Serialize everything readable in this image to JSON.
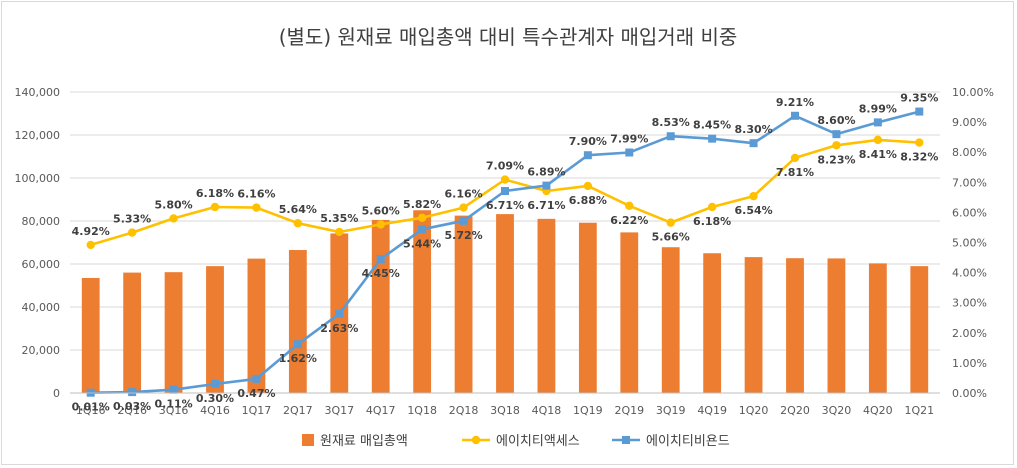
{
  "chart_data": {
    "type": "bar+line",
    "title": "(별도) 원재료 매입총액 대비 특수관계자 매입거래 비중",
    "categories": [
      "1Q16",
      "2Q16",
      "3Q16",
      "4Q16",
      "1Q17",
      "2Q17",
      "3Q17",
      "4Q17",
      "1Q18",
      "2Q18",
      "3Q18",
      "4Q18",
      "1Q19",
      "2Q19",
      "3Q19",
      "4Q19",
      "1Q20",
      "2Q20",
      "3Q20",
      "4Q20",
      "1Q21"
    ],
    "category_labels": [
      "1Q16",
      "2Q16",
      "3Q16",
      "4Q16",
      "1Q17",
      "2Q17",
      "3Q17",
      "4Q17",
      "1Q18",
      "2Q18",
      "3Q18",
      "4Q18",
      "1Q19",
      "2Q19",
      "3Q19",
      "4Q19",
      "1Q20",
      "2Q20",
      "3Q20",
      "4Q20",
      "1Q21"
    ],
    "y_left": {
      "min": 0,
      "max": 140000,
      "step": 20000,
      "ticks": [
        "0",
        "20,000",
        "40,000",
        "60,000",
        "80,000",
        "100,000",
        "120,000",
        "140,000"
      ]
    },
    "y_right": {
      "min": 0,
      "max": 10,
      "step": 1,
      "ticks": [
        "0.00%",
        "1.00%",
        "2.00%",
        "3.00%",
        "4.00%",
        "5.00%",
        "6.00%",
        "7.00%",
        "8.00%",
        "9.00%",
        "10.00%"
      ]
    },
    "series": [
      {
        "name": "원재료 매입총액",
        "type": "bar",
        "axis": "left",
        "color": "#ED7D31",
        "values": [
          53500,
          56000,
          56200,
          59000,
          62500,
          66500,
          74200,
          80500,
          85000,
          82500,
          83200,
          81000,
          79200,
          74700,
          67800,
          65000,
          63200,
          62700,
          62600,
          60300,
          59000
        ]
      },
      {
        "name": "에이치티액세스",
        "type": "line",
        "axis": "right",
        "color": "#FFC000",
        "values": [
          4.92,
          5.33,
          5.8,
          6.18,
          6.16,
          5.64,
          5.35,
          5.6,
          5.82,
          6.16,
          7.09,
          6.71,
          6.88,
          6.22,
          5.66,
          6.18,
          6.54,
          7.81,
          8.23,
          8.41,
          8.32
        ],
        "labels": [
          "4.92%",
          "5.33%",
          "5.80%",
          "6.18%",
          "6.16%",
          "5.64%",
          "5.35%",
          "5.60%",
          "5.82%",
          "6.16%",
          "7.09%",
          "6.71%",
          "6.88%",
          "6.22%",
          "5.66%",
          "6.18%",
          "6.54%",
          "7.81%",
          "8.23%",
          "8.41%",
          "8.32%"
        ]
      },
      {
        "name": "에이치티비욘드",
        "type": "line",
        "axis": "right",
        "color": "#5B9BD5",
        "values": [
          0.01,
          0.03,
          0.11,
          0.3,
          0.47,
          1.62,
          2.63,
          4.45,
          5.44,
          5.72,
          6.71,
          6.89,
          7.9,
          7.99,
          8.53,
          8.45,
          8.3,
          9.21,
          8.6,
          8.99,
          9.35
        ],
        "labels": [
          "0.01%",
          "0.03%",
          "0.11%",
          "0.30%",
          "0.47%",
          "1.62%",
          "2.63%",
          "4.45%",
          "5.44%",
          "5.72%",
          "6.71%",
          "6.89%",
          "7.90%",
          "7.99%",
          "8.53%",
          "8.45%",
          "8.30%",
          "9.21%",
          "8.60%",
          "8.99%",
          "9.35%"
        ]
      }
    ],
    "legend_position": "bottom"
  }
}
